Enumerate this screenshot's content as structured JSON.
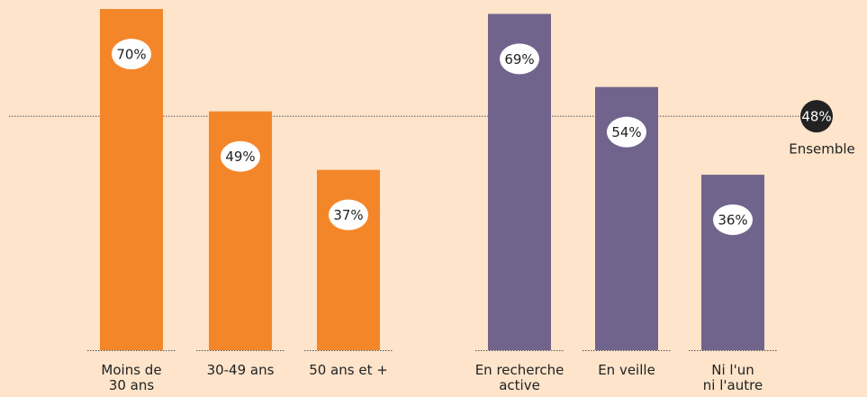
{
  "chart_data": {
    "type": "bar",
    "groups": [
      {
        "color": "#f4862a",
        "categories": [
          "Moins de\n30 ans",
          "30-49 ans",
          "50 ans et +"
        ],
        "values": [
          70,
          49,
          37
        ],
        "value_labels": [
          "70%",
          "49%",
          "37%"
        ]
      },
      {
        "color": "#71648c",
        "categories": [
          "En recherche\nactive",
          "En veille",
          "Ni l'un\nni l'autre"
        ],
        "values": [
          69,
          54,
          36
        ],
        "value_labels": [
          "69%",
          "54%",
          "36%"
        ]
      }
    ],
    "reference": {
      "value": 48,
      "label": "48%",
      "text": "Ensemble"
    }
  }
}
